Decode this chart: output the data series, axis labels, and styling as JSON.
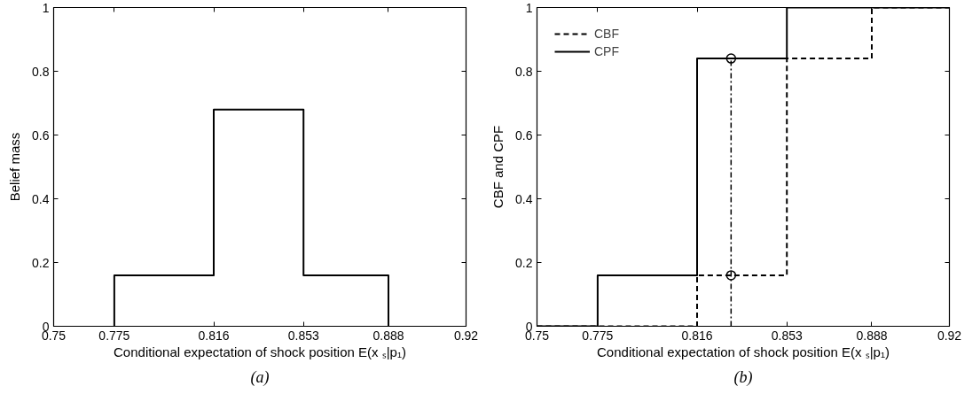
{
  "chart_data": [
    {
      "type": "step",
      "xlabel": "Conditional expectation of shock position E(x ₛ|p₁)",
      "ylabel": "Belief mass",
      "annotations": [
        "(a)"
      ],
      "series": [
        {
          "color": "#000000",
          "x": [
            0.775,
            0.775,
            0.816,
            0.853,
            0.888
          ],
          "values": [
            0,
            0.16,
            0.68,
            0.16,
            0
          ],
          "line_style": "solid"
        }
      ],
      "xlim": [
        0.75,
        0.92
      ],
      "xticks": [
        0.75,
        0.775,
        0.816,
        0.853,
        0.888,
        0.92
      ],
      "ylim": [
        0,
        1
      ],
      "yticks": [
        0,
        0.2,
        0.4,
        0.6,
        0.8,
        1
      ],
      "grid": false,
      "legend": false
    },
    {
      "type": "step",
      "xlabel": "Conditional expectation of shock position E(x ₛ|p₁)",
      "ylabel": "CBF and CPF",
      "annotations": [
        "(b)"
      ],
      "series": [
        {
          "name": "CBF",
          "color": "#000000",
          "x": [
            0.75,
            0.816,
            0.853,
            0.888,
            0.92
          ],
          "values": [
            0,
            0.16,
            0.84,
            1,
            1
          ],
          "line_style": "dashed"
        },
        {
          "name": "CPF",
          "color": "#000000",
          "x": [
            0.75,
            0.775,
            0.816,
            0.853,
            0.92
          ],
          "values": [
            0,
            0.16,
            0.84,
            1,
            1
          ],
          "line_style": "solid"
        },
        {
          "type": "line",
          "color": "#000000",
          "x": [
            0.83,
            0.83
          ],
          "values": [
            0,
            0.84
          ],
          "line_style": "dashdot"
        },
        {
          "type": "scatter",
          "color": "#000000",
          "x": [
            0.83,
            0.83
          ],
          "values": [
            0.16,
            0.84
          ],
          "marker": "circle"
        }
      ],
      "xlim": [
        0.75,
        0.92
      ],
      "xticks": [
        0.75,
        0.775,
        0.816,
        0.853,
        0.888,
        0.92
      ],
      "ylim": [
        0,
        1
      ],
      "yticks": [
        0,
        0.2,
        0.4,
        0.6,
        0.8,
        1
      ],
      "grid": false,
      "legend": "top left"
    }
  ]
}
